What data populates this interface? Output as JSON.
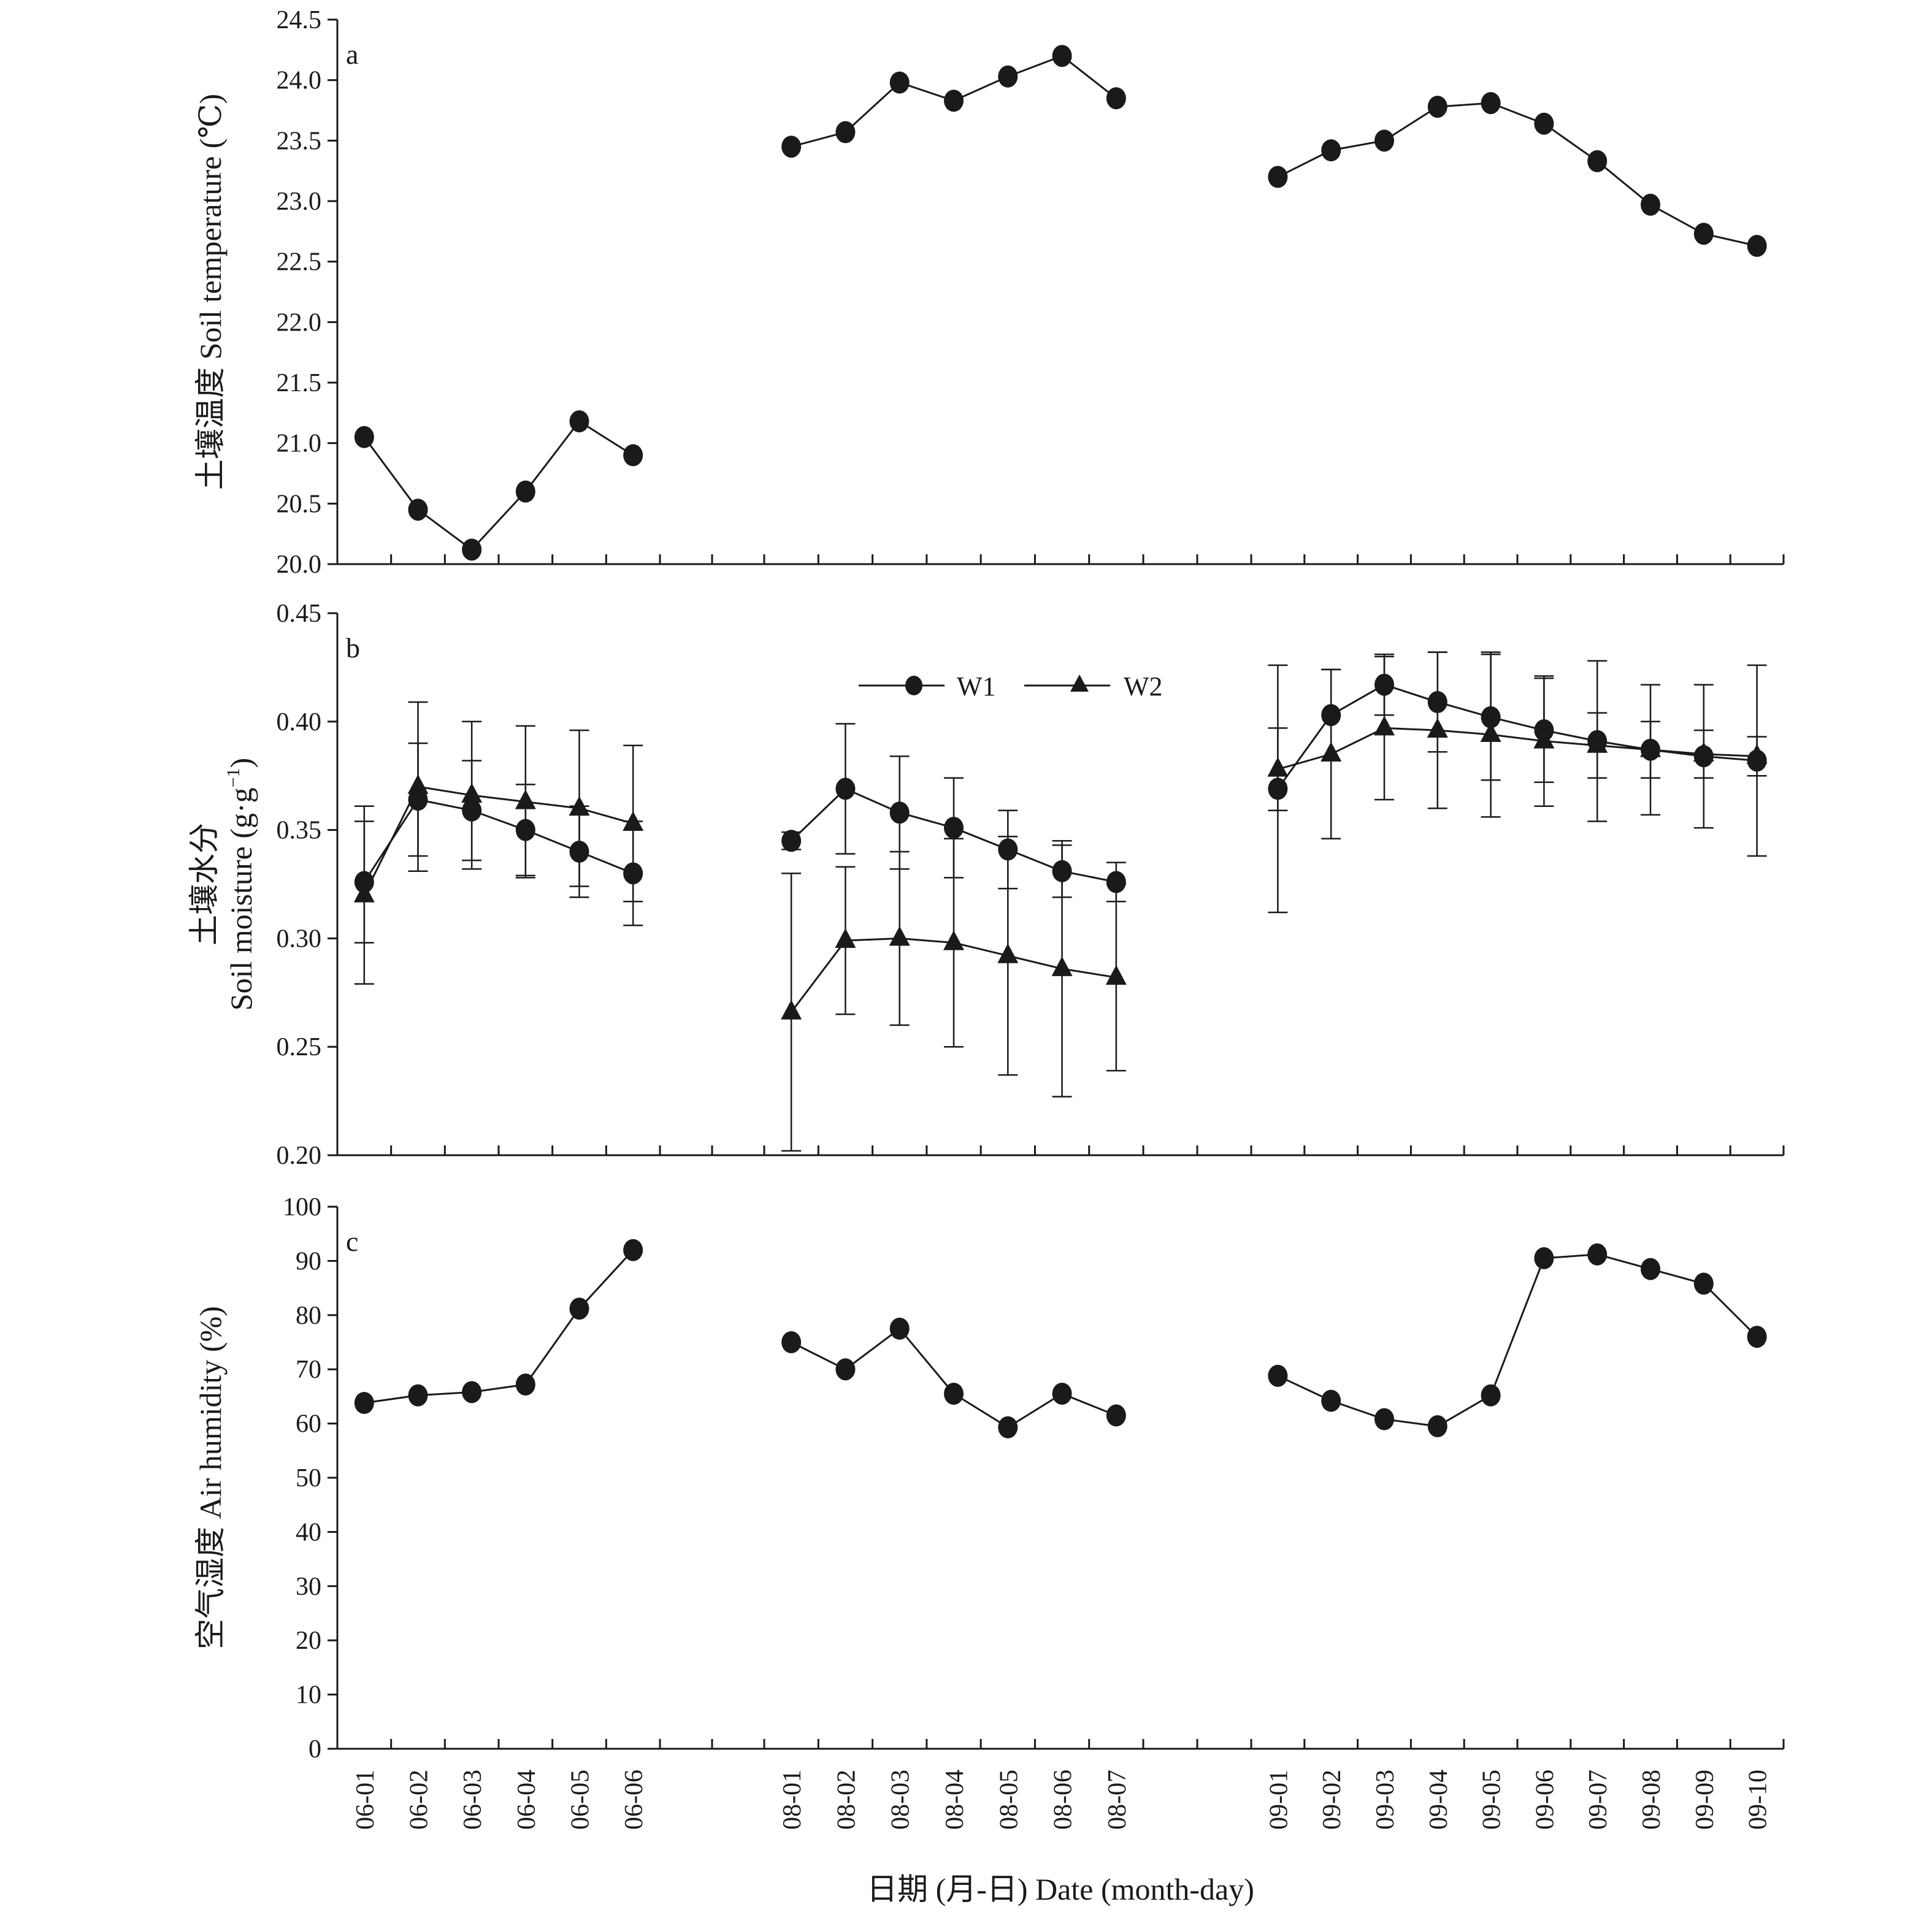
{
  "chart_data": {
    "type": "line",
    "xlabel": "日期 (月-日) Date (month-day)",
    "groups": [
      {
        "categories": [
          "06-01",
          "06-02",
          "06-03",
          "06-04",
          "06-05",
          "06-06"
        ]
      },
      {
        "categories": [
          "08-01",
          "08-02",
          "08-03",
          "08-04",
          "08-05",
          "08-06",
          "08-07"
        ]
      },
      {
        "categories": [
          "09-01",
          "09-02",
          "09-03",
          "09-04",
          "09-05",
          "09-06",
          "09-07",
          "09-08",
          "09-09",
          "09-10"
        ]
      }
    ],
    "legend": {
      "position": "top-center",
      "entries": [
        {
          "label": "W1",
          "marker": "circle"
        },
        {
          "label": "W2",
          "marker": "triangle"
        }
      ]
    },
    "panels": [
      {
        "letter": "a",
        "ylabel": "土壤温度 Soil temperature (℃)",
        "ylim": [
          20.0,
          24.5
        ],
        "ytick_values": [
          20.0,
          20.5,
          21.0,
          21.5,
          22.0,
          22.5,
          23.0,
          23.5,
          24.0,
          24.5
        ],
        "ytick_labels": [
          "20.0",
          "20.5",
          "21.0",
          "21.5",
          "22.0",
          "22.5",
          "23.0",
          "23.5",
          "24.0",
          "24.5"
        ],
        "series": [
          {
            "marker": "circle",
            "values": [
              [
                21.05,
                20.45,
                20.12,
                20.6,
                21.18,
                20.9
              ],
              [
                23.45,
                23.57,
                23.98,
                23.83,
                24.03,
                24.2,
                23.85
              ],
              [
                23.2,
                23.42,
                23.5,
                23.78,
                23.81,
                23.64,
                23.33,
                22.97,
                22.73,
                22.63
              ]
            ]
          }
        ]
      },
      {
        "letter": "b",
        "ylabel_line1": "土壤水分",
        "ylabel_line2": "Soil moisture (g·g",
        "ylabel_sup": "−1",
        "ylabel_close": ")",
        "ylim": [
          0.2,
          0.45
        ],
        "ytick_values": [
          0.2,
          0.25,
          0.3,
          0.35,
          0.4,
          0.45
        ],
        "ytick_labels": [
          "0.20",
          "0.25",
          "0.30",
          "0.35",
          "0.40",
          "0.45"
        ],
        "series": [
          {
            "marker": "circle",
            "values": [
              [
                0.326,
                0.364,
                0.359,
                0.35,
                0.34,
                0.33
              ],
              [
                0.345,
                0.369,
                0.358,
                0.351,
                0.341,
                0.331,
                0.326
              ],
              [
                0.369,
                0.403,
                0.417,
                0.409,
                0.402,
                0.396,
                0.391,
                0.387,
                0.384,
                0.382
              ]
            ],
            "errors": [
              [
                0.028,
                0.026,
                0.023,
                0.021,
                0.021,
                0.024
              ],
              [
                0.004,
                0.03,
                0.026,
                0.023,
                0.018,
                0.012,
                0.009
              ],
              [
                0.057,
                0.021,
                0.014,
                0.023,
                0.029,
                0.024,
                0.037,
                0.03,
                0.033,
                0.044
              ]
            ]
          },
          {
            "marker": "triangle",
            "values": [
              [
                0.32,
                0.37,
                0.366,
                0.363,
                0.36,
                0.353
              ],
              [
                0.266,
                0.299,
                0.3,
                0.298,
                0.292,
                0.286,
                0.282
              ],
              [
                0.378,
                0.385,
                0.397,
                0.396,
                0.394,
                0.391,
                0.389,
                0.387,
                0.385,
                0.384
              ]
            ],
            "errors": [
              [
                0.041,
                0.039,
                0.034,
                0.035,
                0.036,
                0.036
              ],
              [
                0.064,
                0.034,
                0.04,
                0.048,
                0.055,
                0.059,
                0.043
              ],
              [
                0.019,
                0.039,
                0.033,
                0.036,
                0.038,
                0.03,
                0.015,
                0.013,
                0.011,
                0.009
              ]
            ]
          }
        ]
      },
      {
        "letter": "c",
        "ylabel": "空气湿度 Air humidity (%)",
        "ylim": [
          0,
          100
        ],
        "ytick_values": [
          0,
          10,
          20,
          30,
          40,
          50,
          60,
          70,
          80,
          90,
          100
        ],
        "ytick_labels": [
          "0",
          "10",
          "20",
          "30",
          "40",
          "50",
          "60",
          "70",
          "80",
          "90",
          "100"
        ],
        "series": [
          {
            "marker": "circle",
            "values": [
              [
                63.8,
                65.2,
                65.8,
                67.2,
                81.2,
                92.0
              ],
              [
                75.0,
                70.0,
                77.5,
                65.5,
                59.3,
                65.5,
                61.5
              ],
              [
                68.8,
                64.2,
                60.8,
                59.5,
                65.2,
                90.5,
                91.2,
                88.5,
                85.8,
                76.0
              ]
            ]
          }
        ]
      }
    ]
  }
}
